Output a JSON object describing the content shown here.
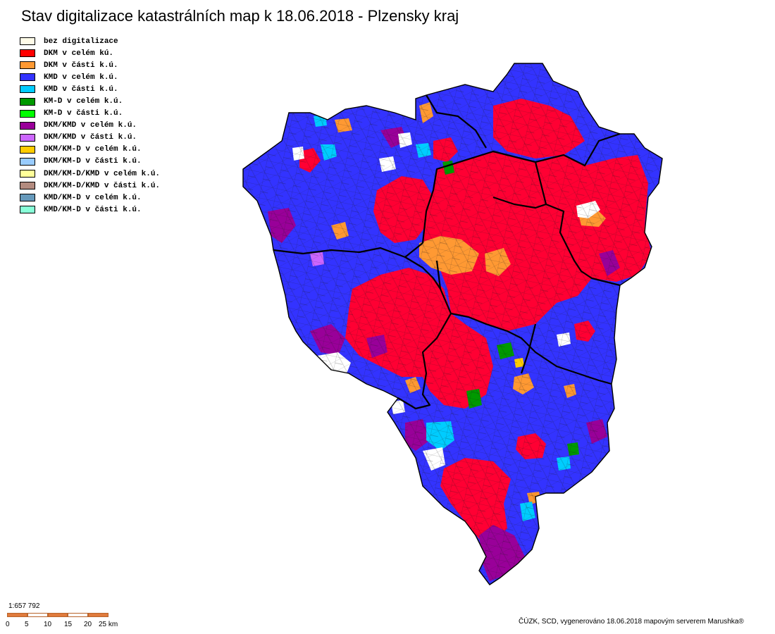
{
  "title": "Stav digitalizace katastrálních map k 18.06.2018 - Plzensky kraj",
  "legend": [
    {
      "label": "bez digitalizace",
      "color": "#fffbe8"
    },
    {
      "label": "DKM v celém kú.",
      "color": "#ff0000"
    },
    {
      "label": "DKM v části k.ú.",
      "color": "#ff9933"
    },
    {
      "label": "KMD v celém k.ú.",
      "color": "#3333ff"
    },
    {
      "label": "KMD v části k.ú.",
      "color": "#00ccff"
    },
    {
      "label": "KM-D v celém k.ú.",
      "color": "#009900"
    },
    {
      "label": "KM-D v části k.ú.",
      "color": "#00ff00"
    },
    {
      "label": "DKM/KMD v celém k.ú.",
      "color": "#990099"
    },
    {
      "label": "DKM/KMD v části k.ú.",
      "color": "#cc66ff"
    },
    {
      "label": "DKM/KM-D v celém k.ú.",
      "color": "#ffcc00"
    },
    {
      "label": "DKM/KM-D v části k.ú.",
      "color": "#99ccff"
    },
    {
      "label": "DKM/KM-D/KMD v celém k.ú.",
      "color": "#ffff99"
    },
    {
      "label": "DKM/KM-D/KMD v části k.ú.",
      "color": "#b38b7f"
    },
    {
      "label": "KMD/KM-D v celém k.ú.",
      "color": "#6699bb"
    },
    {
      "label": "KMD/KM-D v části k.ú.",
      "color": "#88ffd8"
    }
  ],
  "map_colors": {
    "blue": "#3333ff",
    "red": "#ff0033",
    "orange": "#ff9933",
    "purple": "#990099",
    "cyan": "#00ccff",
    "green": "#009900",
    "white": "#ffffff",
    "yellow": "#ffcc00",
    "lilac": "#cc66ff"
  },
  "scale": {
    "ratio": "1:657 792",
    "ticks": [
      "0",
      "5",
      "10",
      "15",
      "20",
      "25 km"
    ]
  },
  "credit": "ČÚZK, SCD, vygenerováno 18.06.2018 mapovým serverem Marushka®"
}
